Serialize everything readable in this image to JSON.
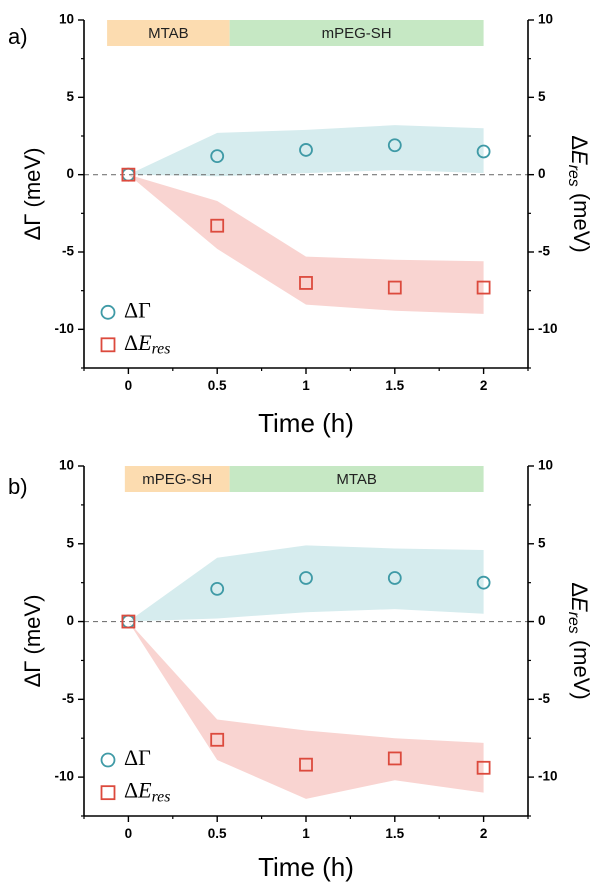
{
  "colors": {
    "gamma": "#3f9aa6",
    "gamma_fill": "#d6ecee",
    "eres": "#dc4a3d",
    "eres_fill": "#f9d4d1",
    "mtab_bar": "#fcdcb0",
    "mpeg_bar": "#c6e8c4",
    "zero_line": "#777777"
  },
  "chart_data": [
    {
      "panel_label": "a)",
      "type": "scatter",
      "xlabel": "Time (h)",
      "ylabel_left": "ΔΓ (meV)",
      "ylabel_right": "ΔE_res (meV)",
      "xlim": [
        -0.25,
        2.25
      ],
      "ylim": [
        -12.5,
        10
      ],
      "x_ticks": [
        0,
        0.5,
        1,
        1.5,
        2
      ],
      "x_tick_labels": [
        "0",
        "0.5",
        "1",
        "1.5",
        "2"
      ],
      "y_ticks": [
        10,
        5,
        0,
        -5,
        -10
      ],
      "y_tick_labels": [
        "10",
        "5",
        "0",
        "-5",
        "-10"
      ],
      "grid": false,
      "zero_line": true,
      "legend_position": "bottom-left",
      "phases": [
        {
          "label": "MTAB",
          "x_start": -0.12,
          "x_end": 0.57,
          "color": "#fcdcb0"
        },
        {
          "label": "mPEG-SH",
          "x_start": 0.57,
          "x_end": 2.0,
          "color": "#c6e8c4"
        }
      ],
      "series": [
        {
          "name": "ΔΓ",
          "marker": "circle",
          "color": "#3f9aa6",
          "fill": "#d6ecee",
          "x": [
            0,
            0.5,
            1,
            1.5,
            2
          ],
          "y": [
            0,
            1.2,
            1.6,
            1.9,
            1.5
          ],
          "upper": [
            0,
            2.7,
            2.9,
            3.2,
            3.0
          ],
          "lower": [
            0,
            -0.1,
            0.1,
            0.3,
            0.1
          ]
        },
        {
          "name": "ΔE_res",
          "marker": "square",
          "color": "#dc4a3d",
          "fill": "#f9d4d1",
          "x": [
            0,
            0.5,
            1,
            1.5,
            2
          ],
          "y": [
            0,
            -3.3,
            -7.0,
            -7.3,
            -7.3
          ],
          "upper": [
            0,
            -1.7,
            -5.3,
            -5.5,
            -5.6
          ],
          "lower": [
            0,
            -4.8,
            -8.4,
            -8.8,
            -9.0
          ]
        }
      ]
    },
    {
      "panel_label": "b)",
      "type": "scatter",
      "xlabel": "Time (h)",
      "ylabel_left": "ΔΓ (meV)",
      "ylabel_right": "ΔE_res (meV)",
      "xlim": [
        -0.25,
        2.25
      ],
      "ylim": [
        -12.5,
        10
      ],
      "x_ticks": [
        0,
        0.5,
        1,
        1.5,
        2
      ],
      "x_tick_labels": [
        "0",
        "0.5",
        "1",
        "1.5",
        "2"
      ],
      "y_ticks": [
        10,
        5,
        0,
        -5,
        -10
      ],
      "y_tick_labels": [
        "10",
        "5",
        "0",
        "-5",
        "-10"
      ],
      "grid": false,
      "zero_line": true,
      "legend_position": "bottom-left",
      "phases": [
        {
          "label": "mPEG-SH",
          "x_start": -0.02,
          "x_end": 0.57,
          "color": "#fcdcb0"
        },
        {
          "label": "MTAB",
          "x_start": 0.57,
          "x_end": 2.0,
          "color": "#c6e8c4"
        }
      ],
      "series": [
        {
          "name": "ΔΓ",
          "marker": "circle",
          "color": "#3f9aa6",
          "fill": "#d6ecee",
          "x": [
            0,
            0.5,
            1,
            1.5,
            2
          ],
          "y": [
            0,
            2.1,
            2.8,
            2.8,
            2.5
          ],
          "upper": [
            0,
            4.1,
            4.9,
            4.7,
            4.6
          ],
          "lower": [
            0,
            0.2,
            0.6,
            0.8,
            0.5
          ]
        },
        {
          "name": "ΔE_res",
          "marker": "square",
          "color": "#dc4a3d",
          "fill": "#f9d4d1",
          "x": [
            0,
            0.5,
            1,
            1.5,
            2
          ],
          "y": [
            0,
            -7.6,
            -9.2,
            -8.8,
            -9.4
          ],
          "upper": [
            0,
            -6.3,
            -7.0,
            -7.5,
            -7.8
          ],
          "lower": [
            0,
            -8.9,
            -11.4,
            -10.2,
            -11.0
          ]
        }
      ]
    }
  ]
}
